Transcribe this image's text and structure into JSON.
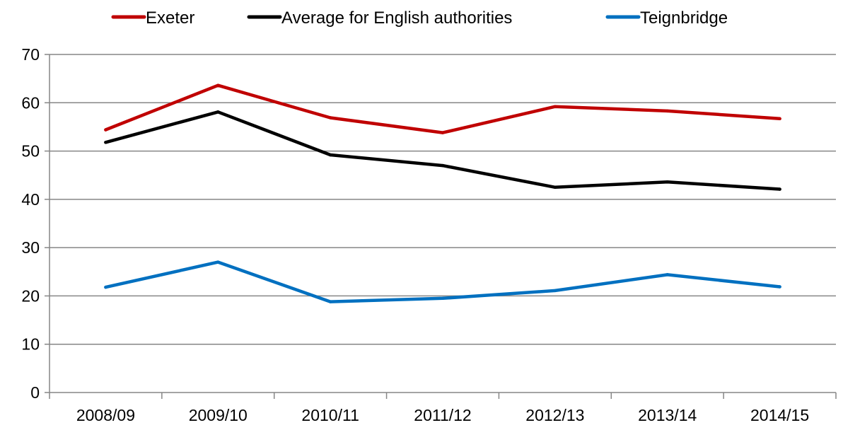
{
  "chart_data": {
    "type": "line",
    "categories": [
      "2008/09",
      "2009/10",
      "2010/11",
      "2011/12",
      "2012/13",
      "2013/14",
      "2014/15"
    ],
    "series": [
      {
        "name": "Exeter",
        "color": "#c00000",
        "values": [
          54.4,
          63.6,
          56.9,
          53.8,
          59.2,
          58.3,
          56.7
        ]
      },
      {
        "name": "Average for English authorities",
        "color": "#000000",
        "values": [
          51.8,
          58.1,
          49.2,
          47.0,
          42.5,
          43.6,
          42.1
        ]
      },
      {
        "name": "Teignbridge",
        "color": "#0070c0",
        "values": [
          21.8,
          27.0,
          18.8,
          19.5,
          21.1,
          24.4,
          21.9
        ]
      }
    ],
    "ylim": [
      0,
      70
    ],
    "yticks": [
      0,
      10,
      20,
      30,
      40,
      50,
      60,
      70
    ],
    "title": "",
    "xlabel": "",
    "ylabel": "",
    "grid": true,
    "legend_position": "top-center",
    "gridline_color": "#868686",
    "axis_color": "#868686"
  }
}
